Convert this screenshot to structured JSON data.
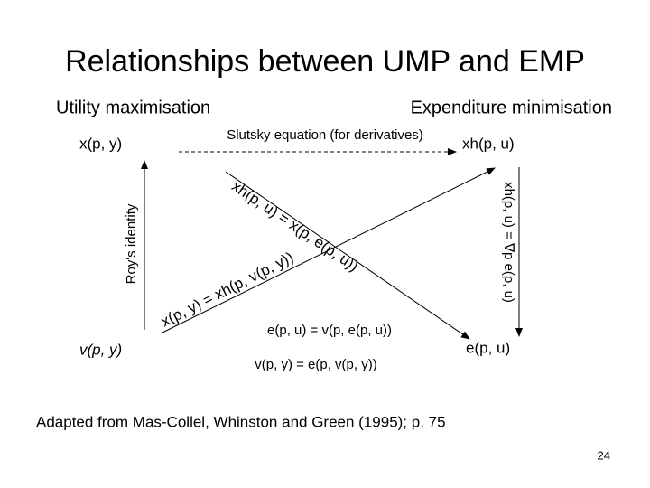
{
  "title": "Relationships between UMP and EMP",
  "headings": {
    "left": "Utility maximisation",
    "right": "Expenditure minimisation"
  },
  "nodes": [
    {
      "label": "x(p, y)"
    },
    {
      "label": "xh(p, u)"
    },
    {
      "label": "v(p, y)"
    },
    {
      "label": "e(p, u)"
    }
  ],
  "edges": [
    {
      "label": "Slutsky equation (for derivatives)"
    },
    {
      "label": "Roy's identity"
    },
    {
      "label": "xh(p, u) = ∇p e(p, u)"
    },
    {
      "label": "xh(p, u) = x(p, e(p, u))"
    },
    {
      "label": "x(p, y) = xh(p, v(p, y))"
    }
  ],
  "identities": [
    "e(p, u) = v(p, e(p, u))",
    "v(p, y) = e(p, v(p, y))"
  ],
  "footnote": "Adapted from Mas-Collel, Whinston and Green (1995); p. 75",
  "page_number": "24"
}
